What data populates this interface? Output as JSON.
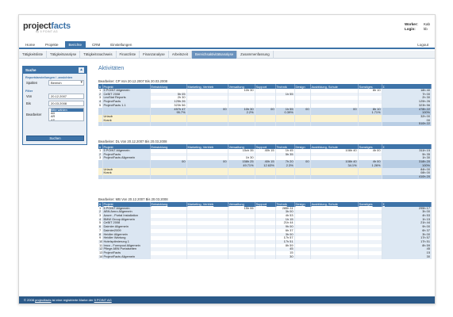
{
  "header": {
    "logo_main": "project",
    "logo_accent": "facts",
    "logo_sub": "by 5 POINT AG",
    "worker_label": "Worker:",
    "worker_value": "Kab",
    "login_label": "Login:",
    "login_value": "kb"
  },
  "mainnav": {
    "tabs": [
      "Home",
      "Projekte",
      "Berichte",
      "CRM",
      "Einstellungen"
    ],
    "active": "Berichte",
    "logout": "Logout"
  },
  "subnav": {
    "tabs": [
      "Tätigkeitsliste",
      "Tätigkeitsanalyse",
      "Tätigkeitsnachweis",
      "Finanzliste",
      "Finanzanalyse",
      "Arbeitszeit",
      "Bereichsaktivitätsanalyse",
      "Zusammenfassung"
    ],
    "active": "Bereichsaktivitätsanalyse"
  },
  "sidebar": {
    "title": "Suche",
    "section1": "Reportdarstellungen / -ansichten",
    "spalten_label": "Spalten",
    "spalten_value": "Bereich",
    "section2": "Filter",
    "von_label": "Von",
    "von_value": "20.12.2007",
    "bis_label": "Bis",
    "bis_value": "20.03.2008",
    "bearbeiter_label": "Bearbeiter",
    "bearbeiter_options": [
      "Bitte wählen",
      "AD",
      "AR",
      "AS"
    ],
    "bearbeiter_selected_index": 0,
    "search_button": "Suchen"
  },
  "content": {
    "title": "Aktivitäten",
    "columns": [
      "#",
      "Projekt",
      "Entwicklung",
      "Marketing, Vertrieb",
      "Verwaltung",
      "Support",
      "Technik",
      "Design",
      "Ausbildung, Schule",
      "Sonstiges",
      "Σ"
    ],
    "tables": [
      {
        "heading": "Bearbeiter: CP Von 20.12.2007 Bis 20.03.2008",
        "rows": [
          [
            "1",
            "5 POINT Allgemein",
            "",
            "",
            "10h 30",
            "",
            "",
            "",
            "",
            "8h 10",
            "18h 40"
          ],
          [
            "2",
            "CeBIT 2008",
            "5h 05",
            "",
            "",
            "",
            "1h 55",
            "",
            "",
            "",
            "7h 00"
          ],
          [
            "3",
            "LeoStat Reports",
            "2h 30",
            "",
            "",
            "",
            "",
            "",
            "",
            "",
            "2h 30"
          ],
          [
            "4",
            "ProjectFacts",
            "125h 26",
            "",
            "",
            "",
            "",
            "",
            "",
            "",
            "125h 26"
          ],
          [
            "5",
            "ProjectFacts 1.1",
            "323h 56",
            "",
            "",
            "",
            "",
            "",
            "",
            "",
            "323h 56"
          ]
        ],
        "sum": [
          "",
          "",
          "457h 47",
          "00",
          "10h 30",
          "00",
          "1h 55",
          "00",
          "00",
          "8h 10",
          "478h 22"
        ],
        "pct": [
          "",
          "",
          "95.7%",
          "",
          "2.2%",
          "",
          "0.39%",
          "",
          "",
          "1.71%",
          "100%"
        ],
        "extras": [
          [
            "",
            "Urlaub",
            "",
            "",
            "",
            "",
            "",
            "",
            "",
            "",
            "32h 00"
          ],
          [
            "",
            "Krank",
            "",
            "",
            "",
            "",
            "",
            "",
            "",
            "",
            "00"
          ]
        ],
        "final": [
          "",
          "",
          "",
          "",
          "",
          "",
          "",
          "",
          "",
          "",
          "510h 22"
        ]
      },
      {
        "heading": "Bearbeiter: DL Von 20.12.2007 Bis 20.03.2008",
        "rows": [
          [
            "1",
            "5 POINT Allgemein",
            "",
            "",
            "15ch 35",
            "40h 15",
            "1h 45",
            "",
            "108h 40",
            "4h 00",
            "311h 15"
          ],
          [
            "2",
            "ProjectFacts",
            "",
            "",
            "",
            "",
            "5h 35",
            "",
            "",
            "",
            "5h 35"
          ],
          [
            "3",
            "ProjectFacts Allgemein",
            "",
            "",
            "1h 30",
            "",
            "",
            "",
            "",
            "",
            "1h 30"
          ]
        ],
        "sum": [
          "",
          "",
          "00",
          "00",
          "158h 25",
          "40h 15",
          "7h 20",
          "00",
          "108h 40",
          "4h 00",
          "318h 20"
        ],
        "pct": [
          "",
          "",
          "",
          "",
          "49.71%",
          "12.63%",
          "2.3%",
          "",
          "34.1%",
          "1.26%",
          "100%"
        ],
        "extras": [
          [
            "",
            "Urlaub",
            "",
            "",
            "",
            "",
            "",
            "",
            "",
            "",
            "84h 00"
          ],
          [
            "",
            "Krank",
            "",
            "",
            "",
            "",
            "",
            "",
            "",
            "",
            "08h 00"
          ]
        ],
        "final": [
          "",
          "",
          "",
          "",
          "",
          "",
          "",
          "",
          "",
          "",
          "410h 20"
        ]
      },
      {
        "heading": "Bearbeiter: MB Von 20.12.2007 Bis 20.03.2008",
        "rows": [
          [
            "1",
            "5 POINT Allgemein",
            "",
            "",
            "15h 06",
            "",
            "285h 11",
            "",
            "",
            "",
            "295h 17"
          ],
          [
            "2",
            "ABN Amro Allgemein",
            "",
            "",
            "",
            "",
            "3h 00",
            "",
            "",
            "",
            "3h 00"
          ],
          [
            "3",
            "Azure - Portal Installation",
            "",
            "",
            "",
            "",
            "4h 53",
            "",
            "",
            "",
            "4h 53"
          ],
          [
            "4",
            "BMW Group Allgemein",
            "",
            "",
            "",
            "",
            "1h 15",
            "",
            "",
            "",
            "1h 15"
          ],
          [
            "5",
            "CeBIT 2008",
            "",
            "",
            "",
            "",
            "21h 44",
            "",
            "",
            "",
            "21h 44"
          ],
          [
            "6",
            "Daimler Allgemein",
            "",
            "",
            "",
            "",
            "9h 00",
            "",
            "",
            "",
            "9h 00"
          ],
          [
            "7",
            "Daimler2009",
            "",
            "",
            "",
            "",
            "6h 37",
            "",
            "",
            "",
            "6h 37"
          ],
          [
            "8",
            "Heidler Allgemein",
            "",
            "",
            "",
            "",
            "3h 00",
            "",
            "",
            "",
            "3h 00"
          ],
          [
            "9",
            "Heidler Wartung",
            "",
            "",
            "",
            "",
            "17h 57",
            "",
            "",
            "",
            "17h 57"
          ],
          [
            "10",
            "Hotelsptimierung 1",
            "",
            "",
            "",
            "",
            "17h 51",
            "",
            "",
            "",
            "17h 51"
          ],
          [
            "11",
            "Imco - Formpool Allgemein",
            "",
            "",
            "",
            "",
            "8h 59",
            "",
            "",
            "",
            "8h 59"
          ],
          [
            "12",
            "Pflege ABN Portalseiten",
            "",
            "",
            "",
            "",
            "45",
            "",
            "",
            "",
            "45"
          ],
          [
            "13",
            "ProjectFacts",
            "",
            "",
            "",
            "",
            "15",
            "",
            "",
            "",
            "15"
          ],
          [
            "14",
            "ProjectFacts Allgemein",
            "",
            "",
            "",
            "",
            "30",
            "",
            "",
            "",
            "30"
          ]
        ],
        "sum": null,
        "pct": null,
        "extras": [],
        "final": null
      }
    ]
  },
  "footer": {
    "prefix": "© 2008",
    "link1": "projectfacts",
    "middle": " ist eine registrierte Marke der ",
    "link2": "5 POINT AG"
  }
}
